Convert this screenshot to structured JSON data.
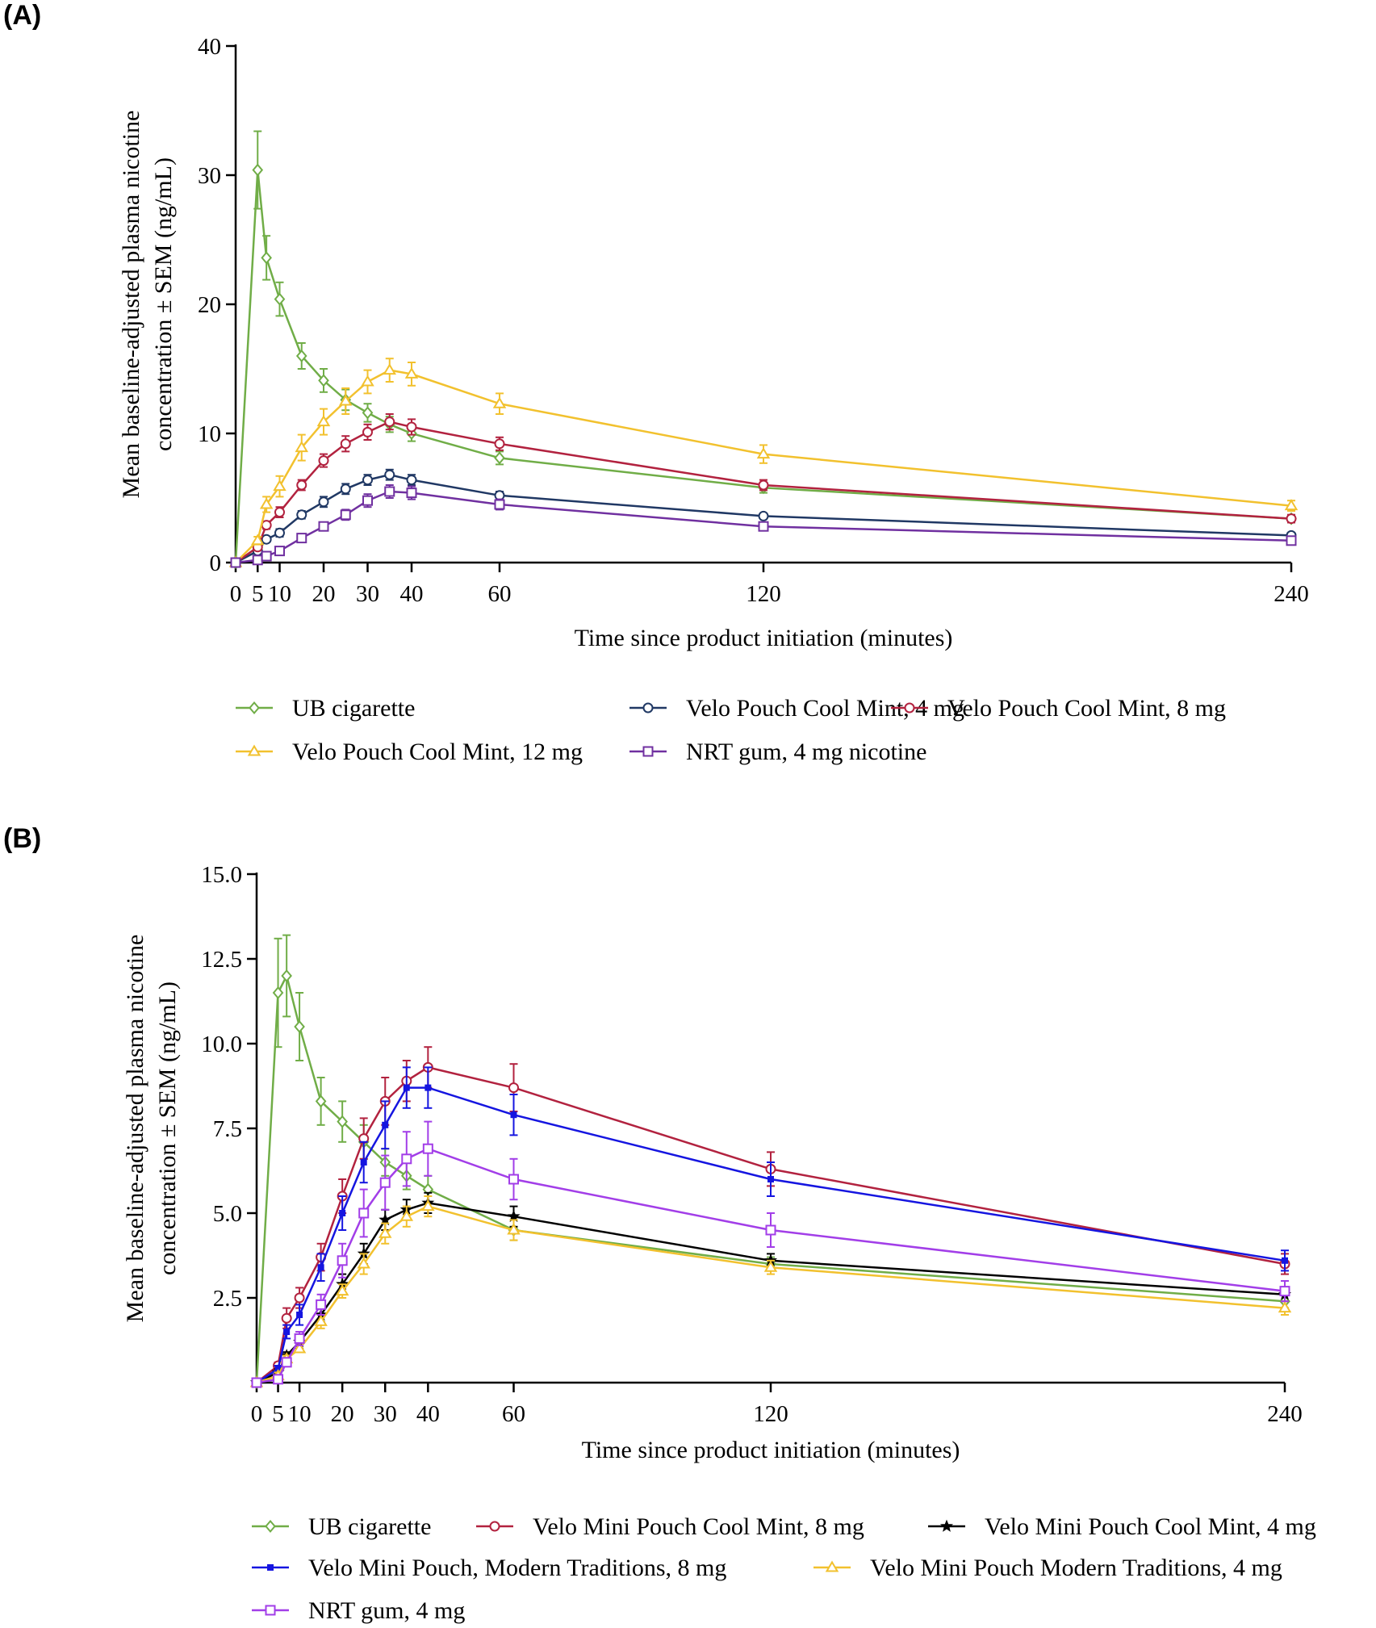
{
  "panels": {
    "a": {
      "label": "(A)"
    },
    "b": {
      "label": "(B)"
    }
  },
  "chart_data": [
    {
      "type": "line",
      "title": "(A)",
      "xlabel": "Time since product initiation (minutes)",
      "ylabel_line1": "Mean baseline-adjusted plasma nicotine",
      "ylabel_line2": "concentration ± SEM (ng/mL)",
      "xlim": [
        0,
        240
      ],
      "ylim": [
        0,
        40
      ],
      "x_ticks": [
        0,
        5,
        10,
        20,
        30,
        40,
        60,
        120,
        240
      ],
      "x_tick_labels": [
        "0",
        "5",
        "10",
        "20",
        "30",
        "40",
        "60",
        "120",
        "240"
      ],
      "y_ticks": [
        0,
        10,
        20,
        30,
        40
      ],
      "y_tick_labels": [
        "0",
        "10",
        "20",
        "30",
        "40"
      ],
      "grid": false,
      "legend_position": "bottom",
      "series": [
        {
          "name": "UB cigarette",
          "color": "#70ad47",
          "marker": "diamond",
          "x": [
            0,
            5,
            7,
            10,
            15,
            20,
            25,
            30,
            35,
            40,
            60,
            120,
            240
          ],
          "values": [
            0,
            30.4,
            23.6,
            20.4,
            16.0,
            14.1,
            12.6,
            11.6,
            10.7,
            10.0,
            8.1,
            5.8,
            3.4
          ],
          "sem": [
            0,
            3.0,
            1.7,
            1.3,
            1.0,
            0.9,
            0.8,
            0.7,
            0.6,
            0.6,
            0.5,
            0.4,
            0.3
          ]
        },
        {
          "name": "Velo Pouch Cool Mint, 4 mg",
          "color": "#203864",
          "marker": "circle",
          "x": [
            0,
            5,
            7,
            10,
            15,
            20,
            25,
            30,
            35,
            40,
            60,
            120,
            240
          ],
          "values": [
            0,
            0.9,
            1.8,
            2.3,
            3.7,
            4.7,
            5.7,
            6.4,
            6.8,
            6.4,
            5.2,
            3.6,
            2.1
          ],
          "sem": [
            0,
            0.2,
            0.2,
            0.3,
            0.3,
            0.4,
            0.4,
            0.4,
            0.4,
            0.4,
            0.3,
            0.2,
            0.2
          ]
        },
        {
          "name": "Velo Pouch Cool Mint, 8 mg",
          "color": "#b2223f",
          "marker": "circle",
          "x": [
            0,
            5,
            7,
            10,
            15,
            20,
            25,
            30,
            35,
            40,
            60,
            120,
            240
          ],
          "values": [
            0,
            1.2,
            2.9,
            3.9,
            6.0,
            7.9,
            9.2,
            10.1,
            10.9,
            10.5,
            9.2,
            6.0,
            3.4
          ],
          "sem": [
            0,
            0.2,
            0.3,
            0.4,
            0.4,
            0.5,
            0.6,
            0.6,
            0.6,
            0.6,
            0.5,
            0.4,
            0.3
          ]
        },
        {
          "name": "Velo Pouch Cool Mint, 12 mg",
          "color": "#f2c12e",
          "marker": "triangle",
          "x": [
            0,
            5,
            7,
            10,
            15,
            20,
            25,
            30,
            35,
            40,
            60,
            120,
            240
          ],
          "values": [
            0,
            1.7,
            4.5,
            5.9,
            8.9,
            10.9,
            12.5,
            14.0,
            14.9,
            14.6,
            12.3,
            8.4,
            4.4
          ],
          "sem": [
            0,
            0.3,
            0.6,
            0.8,
            1.0,
            1.0,
            1.0,
            0.9,
            0.9,
            0.9,
            0.8,
            0.7,
            0.4
          ]
        },
        {
          "name": "NRT gum, 4 mg nicotine",
          "color": "#7030a0",
          "marker": "square",
          "x": [
            0,
            5,
            7,
            10,
            15,
            20,
            25,
            30,
            35,
            40,
            60,
            120,
            240
          ],
          "values": [
            0,
            0.2,
            0.5,
            0.9,
            1.9,
            2.8,
            3.7,
            4.8,
            5.5,
            5.4,
            4.5,
            2.8,
            1.7
          ],
          "sem": [
            0,
            0.1,
            0.1,
            0.2,
            0.3,
            0.3,
            0.4,
            0.5,
            0.5,
            0.5,
            0.4,
            0.3,
            0.2
          ]
        }
      ]
    },
    {
      "type": "line",
      "title": "(B)",
      "xlabel": "Time since product initiation (minutes)",
      "ylabel_line1": "Mean baseline-adjusted plasma nicotine",
      "ylabel_line2": "concentration ± SEM (ng/mL)",
      "xlim": [
        0,
        240
      ],
      "ylim": [
        0,
        15
      ],
      "x_ticks": [
        0,
        5,
        10,
        20,
        30,
        40,
        60,
        120,
        240
      ],
      "x_tick_labels": [
        "0",
        "5",
        "10",
        "20",
        "30",
        "40",
        "60",
        "120",
        "240"
      ],
      "y_ticks": [
        2.5,
        5.0,
        7.5,
        10.0,
        12.5,
        15.0
      ],
      "y_tick_labels": [
        "2.5",
        "5.0",
        "7.5",
        "10.0",
        "12.5",
        "15.0"
      ],
      "grid": false,
      "legend_position": "bottom",
      "series": [
        {
          "name": "UB cigarette",
          "color": "#70ad47",
          "marker": "diamond",
          "x": [
            0,
            5,
            7,
            10,
            15,
            20,
            25,
            30,
            35,
            40,
            60,
            120,
            240
          ],
          "values": [
            0,
            11.5,
            12.0,
            10.5,
            8.3,
            7.7,
            7.1,
            6.5,
            6.1,
            5.7,
            4.5,
            3.5,
            2.4
          ],
          "sem": [
            0,
            1.6,
            1.2,
            1.0,
            0.7,
            0.6,
            0.5,
            0.4,
            0.4,
            0.4,
            0.3,
            0.2,
            0.2
          ]
        },
        {
          "name": "Velo Mini Pouch Cool Mint, 8 mg",
          "color": "#b2223f",
          "marker": "circle",
          "x": [
            0,
            5,
            7,
            10,
            15,
            20,
            25,
            30,
            35,
            40,
            60,
            120,
            240
          ],
          "values": [
            0,
            0.5,
            1.9,
            2.5,
            3.7,
            5.5,
            7.2,
            8.3,
            8.9,
            9.3,
            8.7,
            6.3,
            3.5
          ],
          "sem": [
            0,
            0.1,
            0.3,
            0.3,
            0.4,
            0.5,
            0.6,
            0.7,
            0.6,
            0.6,
            0.7,
            0.5,
            0.3
          ]
        },
        {
          "name": "Velo Mini Pouch Cool Mint, 4 mg",
          "color": "#000000",
          "marker": "star",
          "x": [
            0,
            5,
            7,
            10,
            15,
            20,
            25,
            30,
            35,
            40,
            60,
            120,
            240
          ],
          "values": [
            0,
            0.3,
            0.8,
            1.2,
            2.0,
            2.9,
            3.8,
            4.8,
            5.1,
            5.3,
            4.9,
            3.6,
            2.6
          ],
          "sem": [
            0,
            0.1,
            0.1,
            0.2,
            0.2,
            0.3,
            0.3,
            0.3,
            0.3,
            0.3,
            0.3,
            0.2,
            0.2
          ]
        },
        {
          "name": "Velo Mini Pouch, Modern Traditions, 8 mg",
          "color": "#1515e0",
          "marker": "square-filled",
          "x": [
            0,
            5,
            7,
            10,
            15,
            20,
            25,
            30,
            35,
            40,
            60,
            120,
            240
          ],
          "values": [
            0,
            0.4,
            1.5,
            2.0,
            3.4,
            5.0,
            6.5,
            7.6,
            8.7,
            8.7,
            7.9,
            6.0,
            3.6
          ],
          "sem": [
            0,
            0.1,
            0.2,
            0.3,
            0.4,
            0.5,
            0.6,
            0.7,
            0.6,
            0.6,
            0.6,
            0.5,
            0.3
          ]
        },
        {
          "name": "Velo Mini Pouch Modern Traditions, 4 mg",
          "color": "#f2c12e",
          "marker": "triangle",
          "x": [
            0,
            5,
            7,
            10,
            15,
            20,
            25,
            30,
            35,
            40,
            60,
            120,
            240
          ],
          "values": [
            0,
            0.2,
            0.7,
            1.0,
            1.8,
            2.7,
            3.5,
            4.4,
            4.9,
            5.2,
            4.5,
            3.4,
            2.2
          ],
          "sem": [
            0,
            0.1,
            0.1,
            0.1,
            0.2,
            0.2,
            0.3,
            0.3,
            0.3,
            0.3,
            0.3,
            0.2,
            0.2
          ]
        },
        {
          "name": "NRT gum, 4 mg",
          "color": "#a23ee8",
          "marker": "square",
          "x": [
            0,
            5,
            7,
            10,
            15,
            20,
            25,
            30,
            35,
            40,
            60,
            120,
            240
          ],
          "values": [
            0,
            0.1,
            0.6,
            1.3,
            2.3,
            3.6,
            5.0,
            5.9,
            6.6,
            6.9,
            6.0,
            4.5,
            2.7
          ],
          "sem": [
            0,
            0.1,
            0.1,
            0.2,
            0.3,
            0.5,
            0.7,
            0.8,
            0.8,
            0.8,
            0.6,
            0.5,
            0.3
          ]
        }
      ]
    }
  ]
}
